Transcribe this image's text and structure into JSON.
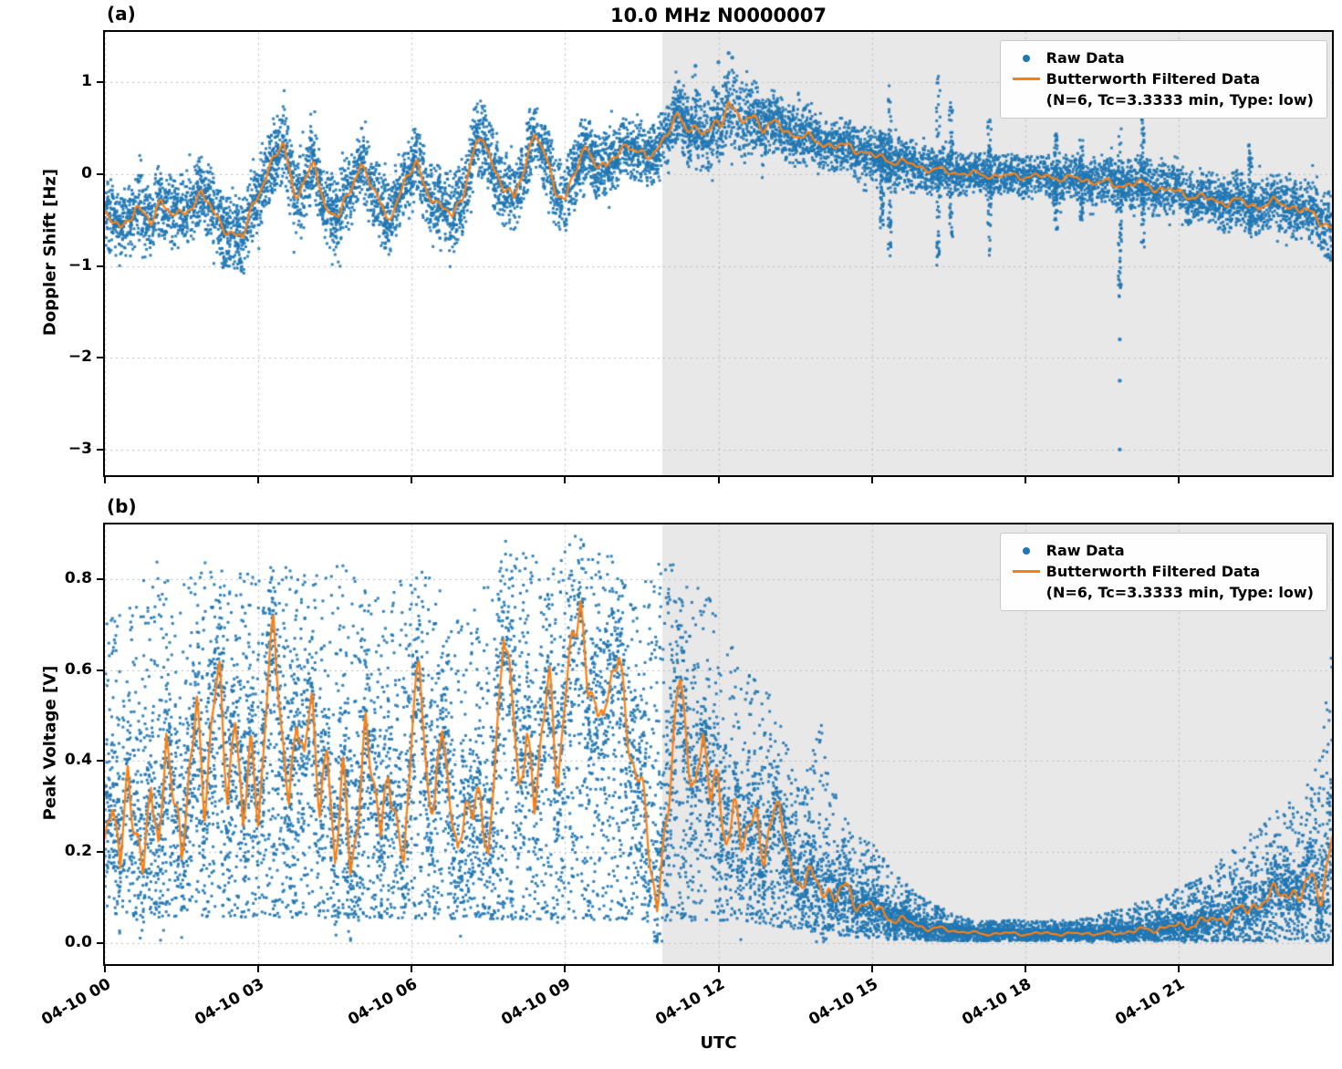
{
  "title": "10.0 MHz N0000007",
  "xlabel": "UTC",
  "xlim": [
    0,
    24
  ],
  "xticks": [
    {
      "h": 0,
      "label": "04-10 00"
    },
    {
      "h": 3,
      "label": "04-10 03"
    },
    {
      "h": 6,
      "label": "04-10 06"
    },
    {
      "h": 9,
      "label": "04-10 09"
    },
    {
      "h": 12,
      "label": "04-10 12"
    },
    {
      "h": 15,
      "label": "04-10 15"
    },
    {
      "h": 18,
      "label": "04-10 18"
    },
    {
      "h": 21,
      "label": "04-10 21"
    }
  ],
  "shade_start_hour": 10.9,
  "legend": {
    "raw_label": "Raw Data",
    "filtered_label": "Butterworth Filtered Data",
    "filtered_params": "(N=6, Tc=3.3333 min, Type: low)",
    "position": "upper right"
  },
  "colors": {
    "raw": "#1f77b4",
    "filtered": "#ff7f0e",
    "shade": "#e8e8e8",
    "grid": "#bbbbbb",
    "axes": "#000000",
    "background": "#ffffff"
  },
  "chart_data": [
    {
      "panel_label": "(a)",
      "type": "scatter",
      "title": "10.0 MHz N0000007",
      "ylabel": "Doppler Shift [Hz]",
      "ylim": [
        -3.28,
        1.55
      ],
      "yticks": [
        {
          "v": 1,
          "label": "1"
        },
        {
          "v": 0,
          "label": "0"
        },
        {
          "v": -1,
          "label": "−1"
        },
        {
          "v": -2,
          "label": "−2"
        },
        {
          "v": -3,
          "label": "−3"
        }
      ],
      "series": [
        {
          "name": "Raw Data",
          "kind": "scatter",
          "color": "#1f77b4"
        },
        {
          "name": "Butterworth Filtered Data (N=6, Tc=3.3333 min, Type: low)",
          "kind": "line",
          "color": "#ff7f0e"
        }
      ],
      "filtered_line": [
        [
          0,
          -0.45
        ],
        [
          0.3,
          -0.6
        ],
        [
          0.6,
          -0.35
        ],
        [
          0.9,
          -0.55
        ],
        [
          1.1,
          -0.25
        ],
        [
          1.4,
          -0.5
        ],
        [
          1.7,
          -0.35
        ],
        [
          1.9,
          -0.15
        ],
        [
          2.1,
          -0.45
        ],
        [
          2.4,
          -0.6
        ],
        [
          2.7,
          -0.7
        ],
        [
          2.9,
          -0.35
        ],
        [
          3.1,
          -0.05
        ],
        [
          3.3,
          0.15
        ],
        [
          3.5,
          0.32
        ],
        [
          3.7,
          -0.2
        ],
        [
          3.9,
          -0.1
        ],
        [
          4.1,
          0.1
        ],
        [
          4.3,
          -0.35
        ],
        [
          4.6,
          -0.45
        ],
        [
          4.8,
          -0.2
        ],
        [
          5,
          0.15
        ],
        [
          5.2,
          -0.1
        ],
        [
          5.5,
          -0.5
        ],
        [
          5.7,
          -0.3
        ],
        [
          5.9,
          -0.05
        ],
        [
          6.1,
          0.1
        ],
        [
          6.3,
          -0.15
        ],
        [
          6.5,
          -0.35
        ],
        [
          6.8,
          -0.45
        ],
        [
          7,
          -0.2
        ],
        [
          7.2,
          0.2
        ],
        [
          7.4,
          0.4
        ],
        [
          7.6,
          0.1
        ],
        [
          7.8,
          -0.15
        ],
        [
          8,
          -0.3
        ],
        [
          8.2,
          0.1
        ],
        [
          8.4,
          0.45
        ],
        [
          8.6,
          0.2
        ],
        [
          8.8,
          -0.15
        ],
        [
          9,
          -0.25
        ],
        [
          9.2,
          0
        ],
        [
          9.4,
          0.3
        ],
        [
          9.6,
          0.15
        ],
        [
          9.8,
          0.05
        ],
        [
          10,
          0.2
        ],
        [
          10.2,
          0.35
        ],
        [
          10.4,
          0.25
        ],
        [
          10.6,
          0.15
        ],
        [
          10.8,
          0.3
        ],
        [
          11,
          0.45
        ],
        [
          11.2,
          0.62
        ],
        [
          11.35,
          0.5
        ],
        [
          11.5,
          0.56
        ],
        [
          11.7,
          0.42
        ],
        [
          11.9,
          0.5
        ],
        [
          12.05,
          0.56
        ],
        [
          12.2,
          0.85
        ],
        [
          12.35,
          0.62
        ],
        [
          12.5,
          0.55
        ],
        [
          12.7,
          0.65
        ],
        [
          12.9,
          0.5
        ],
        [
          13.1,
          0.55
        ],
        [
          13.4,
          0.45
        ],
        [
          13.7,
          0.4
        ],
        [
          14,
          0.35
        ],
        [
          14.3,
          0.3
        ],
        [
          14.6,
          0.3
        ],
        [
          15,
          0.2
        ],
        [
          15.4,
          0.15
        ],
        [
          15.8,
          0.1
        ],
        [
          16.2,
          0.05
        ],
        [
          16.6,
          0.02
        ],
        [
          17,
          0
        ],
        [
          17.5,
          -0.02
        ],
        [
          18,
          -0.02
        ],
        [
          18.5,
          -0.03
        ],
        [
          19,
          -0.05
        ],
        [
          19.4,
          -0.08
        ],
        [
          19.8,
          -0.12
        ],
        [
          20.2,
          -0.1
        ],
        [
          20.6,
          -0.15
        ],
        [
          21,
          -0.2
        ],
        [
          21.4,
          -0.25
        ],
        [
          21.8,
          -0.3
        ],
        [
          22.2,
          -0.3
        ],
        [
          22.6,
          -0.35
        ],
        [
          23,
          -0.3
        ],
        [
          23.4,
          -0.4
        ],
        [
          23.7,
          -0.45
        ],
        [
          24,
          -0.6
        ]
      ],
      "raw_spread": [
        [
          0,
          0.38
        ],
        [
          1,
          0.4
        ],
        [
          2,
          0.42
        ],
        [
          3,
          0.42
        ],
        [
          4,
          0.42
        ],
        [
          5,
          0.4
        ],
        [
          6,
          0.4
        ],
        [
          7,
          0.42
        ],
        [
          8,
          0.42
        ],
        [
          9,
          0.38
        ],
        [
          10,
          0.35
        ],
        [
          11,
          0.33
        ],
        [
          12,
          0.45
        ],
        [
          12.5,
          0.4
        ],
        [
          13,
          0.35
        ],
        [
          14,
          0.3
        ],
        [
          15,
          0.28
        ],
        [
          16,
          0.25
        ],
        [
          17,
          0.22
        ],
        [
          18,
          0.22
        ],
        [
          19,
          0.25
        ],
        [
          20,
          0.28
        ],
        [
          21,
          0.28
        ],
        [
          22,
          0.3
        ],
        [
          23,
          0.32
        ],
        [
          24,
          0.38
        ]
      ],
      "raw_streaks": [
        [
          15.35,
          -0.9,
          1.05
        ],
        [
          15.2,
          -0.6,
          0.5
        ],
        [
          16.3,
          -1,
          1.1
        ],
        [
          16.55,
          -0.7,
          0.8
        ],
        [
          17.3,
          -0.9,
          0.6
        ],
        [
          18.6,
          -0.6,
          0.5
        ],
        [
          19.1,
          -0.5,
          0.4
        ],
        [
          19.85,
          -1.35,
          0.5
        ],
        [
          20.3,
          -0.8,
          0.6
        ],
        [
          22.4,
          -0.7,
          0.35
        ]
      ],
      "raw_outliers": [
        [
          19.85,
          -1.8
        ],
        [
          19.85,
          -2.25
        ],
        [
          19.85,
          -3.0
        ],
        [
          12.2,
          1.32
        ],
        [
          12.27,
          1.27
        ],
        [
          12.0,
          1.22
        ],
        [
          11.55,
          1.18
        ]
      ]
    },
    {
      "panel_label": "(b)",
      "type": "scatter",
      "ylabel": "Peak Voltage [V]",
      "ylim": [
        -0.046,
        0.92
      ],
      "yticks": [
        {
          "v": 0.8,
          "label": "0.8"
        },
        {
          "v": 0.6,
          "label": "0.6"
        },
        {
          "v": 0.4,
          "label": "0.4"
        },
        {
          "v": 0.2,
          "label": "0.2"
        },
        {
          "v": 0,
          "label": "0.0"
        }
      ],
      "series": [
        {
          "name": "Raw Data",
          "kind": "scatter",
          "color": "#1f77b4"
        },
        {
          "name": "Butterworth Filtered Data (N=6, Tc=3.3333 min, Type: low)",
          "kind": "line",
          "color": "#ff7f0e"
        }
      ],
      "filtered_line": [
        [
          0,
          0.2
        ],
        [
          0.15,
          0.3
        ],
        [
          0.3,
          0.15
        ],
        [
          0.45,
          0.42
        ],
        [
          0.6,
          0.25
        ],
        [
          0.75,
          0.12
        ],
        [
          0.9,
          0.35
        ],
        [
          1.05,
          0.2
        ],
        [
          1.2,
          0.5
        ],
        [
          1.35,
          0.3
        ],
        [
          1.5,
          0.15
        ],
        [
          1.65,
          0.4
        ],
        [
          1.8,
          0.55
        ],
        [
          1.95,
          0.3
        ],
        [
          2.1,
          0.45
        ],
        [
          2.25,
          0.6
        ],
        [
          2.4,
          0.35
        ],
        [
          2.55,
          0.5
        ],
        [
          2.7,
          0.25
        ],
        [
          2.85,
          0.4
        ],
        [
          3,
          0.3
        ],
        [
          3.15,
          0.55
        ],
        [
          3.3,
          0.68
        ],
        [
          3.45,
          0.45
        ],
        [
          3.6,
          0.3
        ],
        [
          3.75,
          0.55
        ],
        [
          3.9,
          0.4
        ],
        [
          4.05,
          0.5
        ],
        [
          4.2,
          0.3
        ],
        [
          4.35,
          0.45
        ],
        [
          4.5,
          0.2
        ],
        [
          4.65,
          0.35
        ],
        [
          4.8,
          0.15
        ],
        [
          4.95,
          0.3
        ],
        [
          5.1,
          0.5
        ],
        [
          5.25,
          0.35
        ],
        [
          5.4,
          0.2
        ],
        [
          5.55,
          0.4
        ],
        [
          5.7,
          0.3
        ],
        [
          5.85,
          0.15
        ],
        [
          6,
          0.45
        ],
        [
          6.15,
          0.6
        ],
        [
          6.3,
          0.4
        ],
        [
          6.45,
          0.3
        ],
        [
          6.6,
          0.45
        ],
        [
          6.75,
          0.3
        ],
        [
          6.9,
          0.2
        ],
        [
          7.05,
          0.35
        ],
        [
          7.2,
          0.25
        ],
        [
          7.35,
          0.3
        ],
        [
          7.5,
          0.2
        ],
        [
          7.65,
          0.45
        ],
        [
          7.8,
          0.7
        ],
        [
          7.95,
          0.5
        ],
        [
          8.1,
          0.35
        ],
        [
          8.25,
          0.5
        ],
        [
          8.4,
          0.3
        ],
        [
          8.55,
          0.45
        ],
        [
          8.7,
          0.55
        ],
        [
          8.85,
          0.4
        ],
        [
          9,
          0.55
        ],
        [
          9.15,
          0.65
        ],
        [
          9.3,
          0.72
        ],
        [
          9.45,
          0.55
        ],
        [
          9.6,
          0.6
        ],
        [
          9.75,
          0.45
        ],
        [
          9.9,
          0.55
        ],
        [
          10.05,
          0.65
        ],
        [
          10.2,
          0.5
        ],
        [
          10.35,
          0.4
        ],
        [
          10.5,
          0.3
        ],
        [
          10.65,
          0.2
        ],
        [
          10.8,
          0.1
        ],
        [
          10.95,
          0.25
        ],
        [
          11.1,
          0.4
        ],
        [
          11.25,
          0.55
        ],
        [
          11.4,
          0.45
        ],
        [
          11.55,
          0.35
        ],
        [
          11.7,
          0.45
        ],
        [
          11.85,
          0.3
        ],
        [
          12,
          0.35
        ],
        [
          12.15,
          0.25
        ],
        [
          12.3,
          0.3
        ],
        [
          12.45,
          0.2
        ],
        [
          12.6,
          0.25
        ],
        [
          12.75,
          0.3
        ],
        [
          12.9,
          0.2
        ],
        [
          13.05,
          0.25
        ],
        [
          13.2,
          0.3
        ],
        [
          13.35,
          0.2
        ],
        [
          13.5,
          0.15
        ],
        [
          13.7,
          0.12
        ],
        [
          13.9,
          0.15
        ],
        [
          14.1,
          0.12
        ],
        [
          14.3,
          0.1
        ],
        [
          14.5,
          0.12
        ],
        [
          14.7,
          0.09
        ],
        [
          15,
          0.08
        ],
        [
          15.3,
          0.06
        ],
        [
          15.6,
          0.05
        ],
        [
          16,
          0.035
        ],
        [
          16.4,
          0.03
        ],
        [
          16.8,
          0.025
        ],
        [
          17.2,
          0.02
        ],
        [
          17.6,
          0.022
        ],
        [
          18,
          0.02
        ],
        [
          18.4,
          0.022
        ],
        [
          18.8,
          0.02
        ],
        [
          19.2,
          0.022
        ],
        [
          19.6,
          0.02
        ],
        [
          20,
          0.025
        ],
        [
          20.4,
          0.03
        ],
        [
          20.8,
          0.035
        ],
        [
          21.2,
          0.04
        ],
        [
          21.6,
          0.05
        ],
        [
          22,
          0.06
        ],
        [
          22.4,
          0.08
        ],
        [
          22.8,
          0.1
        ],
        [
          23.1,
          0.12
        ],
        [
          23.4,
          0.1
        ],
        [
          23.6,
          0.14
        ],
        [
          23.8,
          0.12
        ],
        [
          24,
          0.22
        ]
      ],
      "raw_band_lo": [
        [
          0,
          0.06
        ],
        [
          11.5,
          0.05
        ],
        [
          12.5,
          0.05
        ],
        [
          13.5,
          0.03
        ],
        [
          14.5,
          0.015
        ],
        [
          15.5,
          0.008
        ],
        [
          16.5,
          0.005
        ],
        [
          24,
          0.005
        ]
      ],
      "raw_band_hi": [
        [
          0,
          0.7
        ],
        [
          0.5,
          0.75
        ],
        [
          1,
          0.85
        ],
        [
          1.5,
          0.8
        ],
        [
          2,
          0.85
        ],
        [
          2.5,
          0.8
        ],
        [
          3,
          0.85
        ],
        [
          3.5,
          0.85
        ],
        [
          4,
          0.8
        ],
        [
          4.5,
          0.85
        ],
        [
          5,
          0.8
        ],
        [
          5.5,
          0.75
        ],
        [
          6,
          0.85
        ],
        [
          6.5,
          0.8
        ],
        [
          7,
          0.7
        ],
        [
          7.5,
          0.8
        ],
        [
          8,
          0.87
        ],
        [
          8.5,
          0.85
        ],
        [
          9,
          0.87
        ],
        [
          9.5,
          0.87
        ],
        [
          10,
          0.85
        ],
        [
          10.5,
          0.8
        ],
        [
          11,
          0.85
        ],
        [
          11.5,
          0.8
        ],
        [
          12,
          0.75
        ],
        [
          12.5,
          0.6
        ],
        [
          13,
          0.55
        ],
        [
          13.3,
          0.45
        ],
        [
          13.6,
          0.35
        ],
        [
          14,
          0.5
        ],
        [
          14.2,
          0.35
        ],
        [
          14.6,
          0.25
        ],
        [
          15,
          0.22
        ],
        [
          15.5,
          0.15
        ],
        [
          16,
          0.1
        ],
        [
          16.5,
          0.07
        ],
        [
          17,
          0.05
        ],
        [
          18,
          0.05
        ],
        [
          19,
          0.05
        ],
        [
          20,
          0.08
        ],
        [
          20.5,
          0.1
        ],
        [
          21,
          0.12
        ],
        [
          21.5,
          0.15
        ],
        [
          22,
          0.2
        ],
        [
          22.5,
          0.25
        ],
        [
          23,
          0.3
        ],
        [
          23.5,
          0.35
        ],
        [
          23.8,
          0.42
        ],
        [
          24,
          0.68
        ]
      ],
      "raw_streaks": [],
      "raw_outliers": []
    }
  ]
}
